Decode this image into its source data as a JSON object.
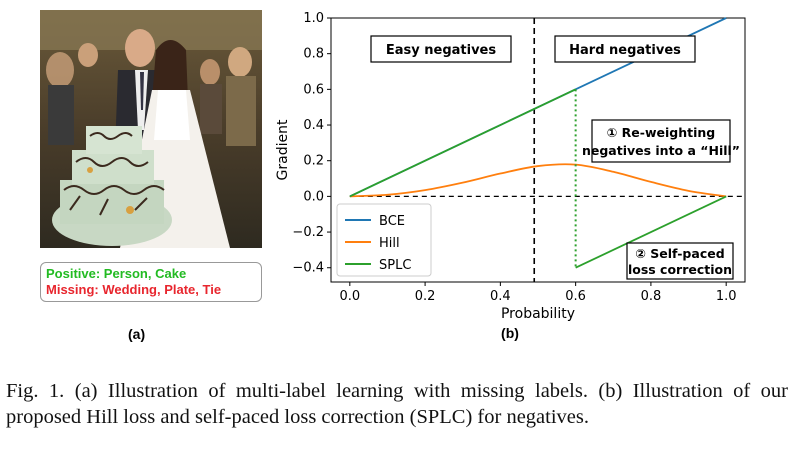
{
  "panel_a": {
    "subfig_label": "(a)",
    "positive_text": "Positive: Person, Cake",
    "missing_text": "Missing: Wedding, Plate, Tie",
    "positive_color": "#22bb22",
    "missing_color": "#e8262e"
  },
  "panel_b": {
    "subfig_label": "(b)"
  },
  "chart_data": {
    "type": "line",
    "xlabel": "Probability",
    "ylabel": "Gradient",
    "xlim": [
      -0.05,
      1.05
    ],
    "ylim": [
      -0.48,
      1.0
    ],
    "xticks": [
      0.0,
      0.2,
      0.4,
      0.6,
      0.8,
      1.0
    ],
    "yticks": [
      -0.4,
      -0.2,
      0.0,
      0.2,
      0.4,
      0.6,
      0.8,
      1.0
    ],
    "tick_labels_x": [
      "0.0",
      "0.2",
      "0.4",
      "0.6",
      "0.8",
      "1.0"
    ],
    "tick_labels_y": [
      "−0.4",
      "−0.2",
      "0.0",
      "0.2",
      "0.4",
      "0.6",
      "0.8",
      "1.0"
    ],
    "series": [
      {
        "name": "BCE",
        "color": "#1f77b4",
        "x": [
          0,
          0.2,
          0.4,
          0.6,
          0.8,
          1.0
        ],
        "y": [
          0,
          0.2,
          0.4,
          0.6,
          0.8,
          1.0
        ]
      },
      {
        "name": "Hill",
        "color": "#ff7f0e",
        "x": [
          0,
          0.1,
          0.2,
          0.3,
          0.4,
          0.5,
          0.6,
          0.7,
          0.8,
          0.9,
          1.0
        ],
        "y": [
          0,
          0.009,
          0.035,
          0.077,
          0.128,
          0.17,
          0.178,
          0.138,
          0.081,
          0.031,
          0
        ]
      },
      {
        "name": "SPLC",
        "color": "#2ca02c",
        "segments": [
          {
            "x": [
              0,
              0.6
            ],
            "y": [
              0,
              0.6
            ]
          },
          {
            "x": [
              0.6,
              1.0
            ],
            "y": [
              -0.4,
              0
            ]
          }
        ],
        "jump_at": 0.6
      }
    ],
    "vline_x": 0.49,
    "hline_y": 0.0,
    "legend_position": "lower-left",
    "annotations": {
      "easy": "Easy negatives",
      "hard": "Hard negatives",
      "reweight_line1": "① Re-weighting",
      "reweight_line2": "negatives into a “Hill”",
      "selfpaced_line1": "② Self-paced",
      "selfpaced_line2": "loss correction"
    }
  },
  "caption": {
    "text": "Fig. 1.   (a) Illustration of multi-label learning with missing labels. (b) Illustration of our proposed Hill loss and self-paced loss correction (SPLC) for negatives."
  }
}
